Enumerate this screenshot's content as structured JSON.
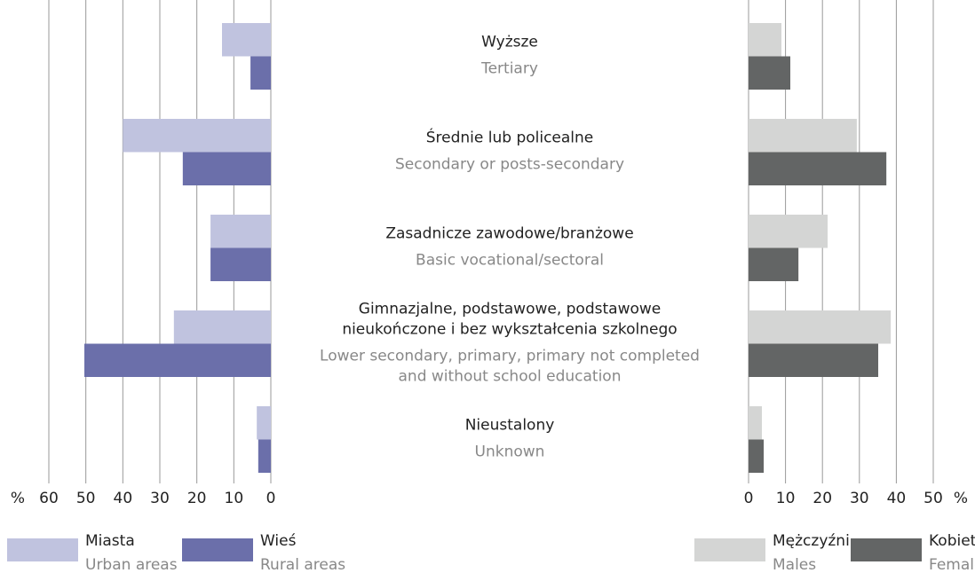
{
  "category_labels": {
    "pl": [
      [
        "Wyższe"
      ],
      [
        "Średnie lub policealne"
      ],
      [
        "Zasadnicze zawodowe/branżowe"
      ],
      [
        "Gimnazjalne, podstawowe, podstawowe",
        "nieukończone i bez wykształcenia szkolnego"
      ],
      [
        "Nieustalony"
      ]
    ],
    "en": [
      [
        "Tertiary"
      ],
      [
        "Secondary or posts-secondary"
      ],
      [
        "Basic vocational/sectoral"
      ],
      [
        "Lower secondary, primary, primary not completed",
        "and without school education"
      ],
      [
        "Unknown"
      ]
    ]
  },
  "chart_data": [
    {
      "type": "bar",
      "orientation": "horizontal",
      "direction": "reversed",
      "x_unit": "%",
      "xlim": [
        0,
        60
      ],
      "xticks": [
        0,
        10,
        20,
        30,
        40,
        50,
        60
      ],
      "grid": true,
      "series": [
        {
          "name": "Miasta",
          "name_en": "Urban areas",
          "color": "#c0c3df",
          "values": [
            13.2,
            40,
            16.3,
            26.2,
            3.8
          ]
        },
        {
          "name": "Wieś",
          "name_en": "Rural areas",
          "color": "#6b6faa",
          "values": [
            5.5,
            23.8,
            16.3,
            50.4,
            3.4
          ]
        }
      ]
    },
    {
      "type": "bar",
      "orientation": "horizontal",
      "direction": "normal",
      "x_unit": "%",
      "xlim": [
        0,
        50
      ],
      "xticks": [
        0,
        10,
        20,
        30,
        40,
        50
      ],
      "grid": true,
      "series": [
        {
          "name": "Mężczyźni",
          "name_en": "Males",
          "color": "#d4d5d4",
          "values": [
            8.9,
            29.3,
            21.4,
            38.5,
            3.6
          ]
        },
        {
          "name": "Kobiety",
          "name_en": "Females",
          "color": "#636565",
          "values": [
            11.3,
            37.3,
            13.5,
            35.1,
            4.1
          ]
        }
      ]
    }
  ]
}
